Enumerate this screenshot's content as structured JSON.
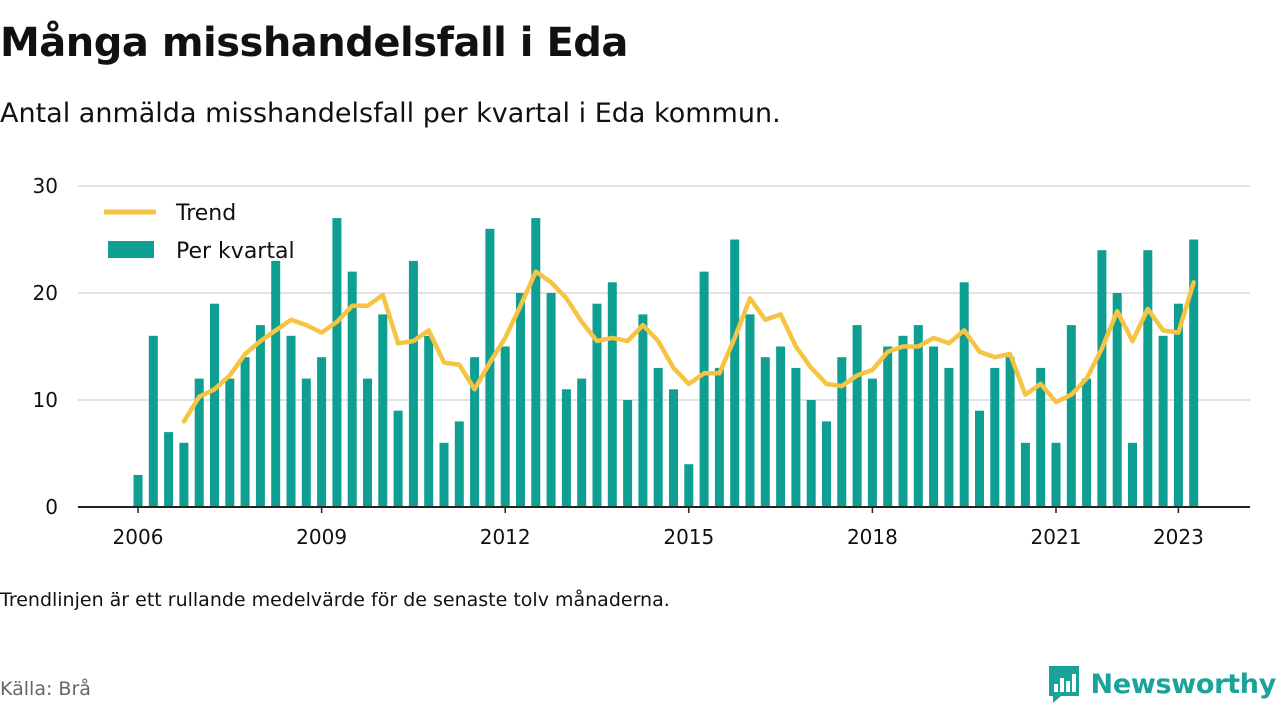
{
  "header": {
    "title": "Många misshandelsfall i Eda",
    "subtitle": "Antal anmälda misshandelsfall per kvartal i Eda kommun."
  },
  "footer": {
    "note": "Trendlinjen är ett rullande medelvärde för de senaste tolv månaderna.",
    "source": "Källa: Brå",
    "brand": "Newsworthy"
  },
  "colors": {
    "bar": "#0e9e92",
    "trend": "#f6c343",
    "grid": "#d9d9d9",
    "axis": "#222222",
    "brand": "#1aa39a"
  },
  "chart_data": {
    "type": "bar",
    "legend": {
      "position": "top-left",
      "entries": [
        "Trend",
        "Per kvartal"
      ]
    },
    "ylim": [
      0,
      30
    ],
    "yticks": [
      0,
      10,
      20,
      30
    ],
    "xticks": [
      "2006",
      "2009",
      "2012",
      "2015",
      "2018",
      "2021",
      "2023"
    ],
    "grid": true,
    "categories": [
      "2006 Q1",
      "2006 Q2",
      "2006 Q3",
      "2006 Q4",
      "2007 Q1",
      "2007 Q2",
      "2007 Q3",
      "2007 Q4",
      "2008 Q1",
      "2008 Q2",
      "2008 Q3",
      "2008 Q4",
      "2009 Q1",
      "2009 Q2",
      "2009 Q3",
      "2009 Q4",
      "2010 Q1",
      "2010 Q2",
      "2010 Q3",
      "2010 Q4",
      "2011 Q1",
      "2011 Q2",
      "2011 Q3",
      "2011 Q4",
      "2012 Q1",
      "2012 Q2",
      "2012 Q3",
      "2012 Q4",
      "2013 Q1",
      "2013 Q2",
      "2013 Q3",
      "2013 Q4",
      "2014 Q1",
      "2014 Q2",
      "2014 Q3",
      "2014 Q4",
      "2015 Q1",
      "2015 Q2",
      "2015 Q3",
      "2015 Q4",
      "2016 Q1",
      "2016 Q2",
      "2016 Q3",
      "2016 Q4",
      "2017 Q1",
      "2017 Q2",
      "2017 Q3",
      "2017 Q4",
      "2018 Q1",
      "2018 Q2",
      "2018 Q3",
      "2018 Q4",
      "2019 Q1",
      "2019 Q2",
      "2019 Q3",
      "2019 Q4",
      "2020 Q1",
      "2020 Q2",
      "2020 Q3",
      "2020 Q4",
      "2021 Q1",
      "2021 Q2",
      "2021 Q3",
      "2021 Q4",
      "2022 Q1",
      "2022 Q2",
      "2022 Q3",
      "2022 Q4",
      "2023 Q1",
      "2023 Q2"
    ],
    "series": [
      {
        "name": "Per kvartal",
        "values": [
          3,
          16,
          7,
          6,
          12,
          19,
          12,
          14,
          17,
          23,
          16,
          12,
          14,
          27,
          22,
          12,
          18,
          9,
          23,
          16,
          6,
          8,
          14,
          26,
          15,
          20,
          27,
          20,
          11,
          12,
          19,
          21,
          10,
          18,
          13,
          11,
          4,
          22,
          13,
          25,
          18,
          14,
          15,
          13,
          10,
          8,
          14,
          17,
          12,
          15,
          16,
          17,
          15,
          13,
          21,
          9,
          13,
          14,
          6,
          13,
          6,
          17,
          12,
          24,
          20,
          6,
          24,
          16,
          19,
          25
        ]
      },
      {
        "name": "Trend",
        "values": [
          null,
          null,
          null,
          8.0,
          10.3,
          11.0,
          12.3,
          14.3,
          15.5,
          16.5,
          17.5,
          17.0,
          16.3,
          17.3,
          18.8,
          18.8,
          19.8,
          15.3,
          15.5,
          16.5,
          13.5,
          13.3,
          11.0,
          13.5,
          15.8,
          18.8,
          22.0,
          21.0,
          19.5,
          17.3,
          15.5,
          15.8,
          15.5,
          17.0,
          15.5,
          13.0,
          11.5,
          12.5,
          12.5,
          15.8,
          19.5,
          17.5,
          18.0,
          15.0,
          13.0,
          11.5,
          11.3,
          12.3,
          12.8,
          14.5,
          15.0,
          15.0,
          15.8,
          15.3,
          16.5,
          14.5,
          14.0,
          14.3,
          10.5,
          11.5,
          9.8,
          10.5,
          12.0,
          14.8,
          18.3,
          15.5,
          18.5,
          16.5,
          16.3,
          21.0
        ]
      }
    ]
  }
}
